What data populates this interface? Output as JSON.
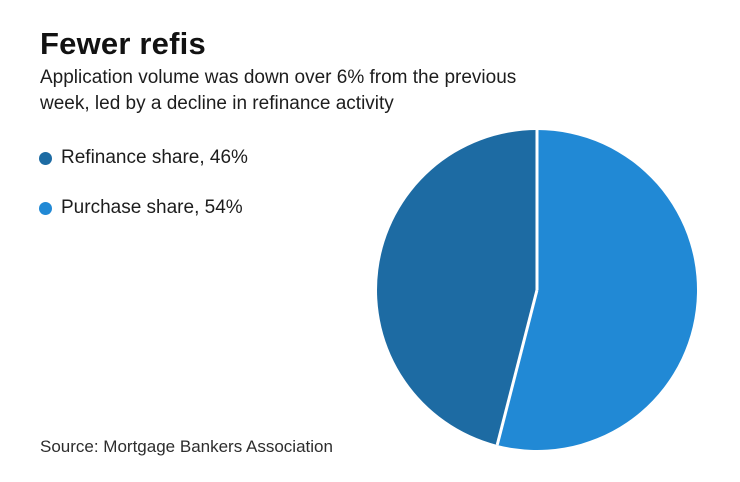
{
  "header": {
    "title": "Fewer refis",
    "subtitle_lines": [
      "Application volume was down over 6% from the previous",
      "week, led by a decline in refinance activity"
    ]
  },
  "legend": {
    "items": [
      {
        "label": "Refinance share, 46%",
        "color": "#1d6ba3"
      },
      {
        "label": "Purchase share, 54%",
        "color": "#2189d5"
      }
    ]
  },
  "footer": {
    "source": "Source: Mortgage Bankers Association"
  },
  "chart_data": {
    "type": "pie",
    "title": "Fewer refis",
    "subtitle": "Application volume was down over 6% from the previous week, led by a decline in refinance activity",
    "slices": [
      {
        "id": "refinance",
        "label": "Refinance share",
        "value": 46,
        "color": "#1d6ba3"
      },
      {
        "id": "purchase",
        "label": "Purchase share",
        "value": 54,
        "color": "#2189d5"
      }
    ],
    "draw_order": [
      1,
      0
    ],
    "start_angle_deg": 0,
    "direction": "clockwise",
    "legend_position": "left",
    "slice_divider_color": "#ffffff",
    "source": "Source: Mortgage Bankers Association"
  }
}
